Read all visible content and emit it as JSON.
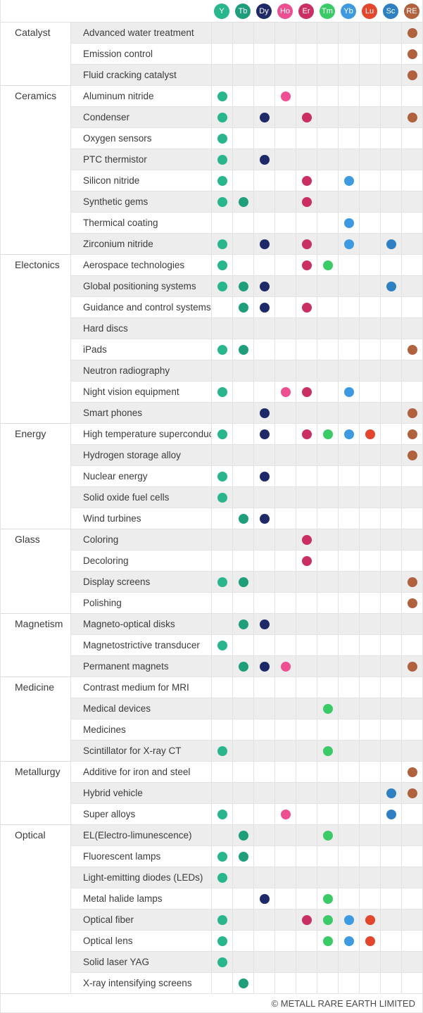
{
  "chart_data": {
    "type": "table",
    "description": "Dot-matrix table of rare earth elements vs. their applications by category",
    "columns": [
      "Y",
      "Tb",
      "Dy",
      "Ho",
      "Er",
      "Tm",
      "Yb",
      "Lu",
      "Sc",
      "RE"
    ],
    "column_colors": {
      "Y": "#29b68c",
      "Tb": "#1f9e7b",
      "Dy": "#1e2a68",
      "Ho": "#ee4f92",
      "Er": "#c92f62",
      "Tm": "#3bcb66",
      "Yb": "#3e9ae0",
      "Lu": "#e2472e",
      "Sc": "#2e80c2",
      "RE": "#b0613e"
    },
    "sections": [
      {
        "name": "Catalyst",
        "rows": [
          {
            "label": "Advanced water treatment",
            "dots": [
              "RE"
            ]
          },
          {
            "label": "Emission control",
            "dots": [
              "RE"
            ]
          },
          {
            "label": "Fluid cracking catalyst",
            "dots": [
              "RE"
            ]
          }
        ]
      },
      {
        "name": "Ceramics",
        "rows": [
          {
            "label": "Aluminum nitride",
            "dots": [
              "Y",
              "Ho"
            ]
          },
          {
            "label": "Condenser",
            "dots": [
              "Y",
              "Dy",
              "Er",
              "RE"
            ]
          },
          {
            "label": "Oxygen sensors",
            "dots": [
              "Y"
            ]
          },
          {
            "label": "PTC thermistor",
            "dots": [
              "Y",
              "Dy"
            ]
          },
          {
            "label": "Silicon nitride",
            "dots": [
              "Y",
              "Er",
              "Yb"
            ]
          },
          {
            "label": "Synthetic gems",
            "dots": [
              "Y",
              "Tb",
              "Er"
            ]
          },
          {
            "label": "Thermical coating",
            "dots": [
              "Yb"
            ]
          },
          {
            "label": "Zirconium nitride",
            "dots": [
              "Y",
              "Dy",
              "Er",
              "Yb",
              "Sc"
            ]
          }
        ]
      },
      {
        "name": "Electonics",
        "rows": [
          {
            "label": "Aerospace technologies",
            "dots": [
              "Y",
              "Er",
              "Tm"
            ]
          },
          {
            "label": "Global positioning systems",
            "dots": [
              "Y",
              "Tb",
              "Dy",
              "Sc"
            ]
          },
          {
            "label": "Guidance and control systems",
            "dots": [
              "Tb",
              "Dy",
              "Er"
            ]
          },
          {
            "label": "Hard discs",
            "dots": []
          },
          {
            "label": "iPads",
            "dots": [
              "Y",
              "Tb",
              "RE"
            ]
          },
          {
            "label": "Neutron radiography",
            "dots": []
          },
          {
            "label": "Night vision equipment",
            "dots": [
              "Y",
              "Ho",
              "Er",
              "Yb"
            ]
          },
          {
            "label": "Smart phones",
            "dots": [
              "Dy",
              "RE"
            ]
          }
        ]
      },
      {
        "name": "Energy",
        "rows": [
          {
            "label": "High temperature superconductors",
            "dots": [
              "Y",
              "Dy",
              "Er",
              "Tm",
              "Yb",
              "Lu",
              "RE"
            ]
          },
          {
            "label": "Hydrogen storage alloy",
            "dots": [
              "RE"
            ]
          },
          {
            "label": "Nuclear energy",
            "dots": [
              "Y",
              "Dy"
            ]
          },
          {
            "label": "Solid oxide fuel cells",
            "dots": [
              "Y"
            ]
          },
          {
            "label": "Wind turbines",
            "dots": [
              "Tb",
              "Dy"
            ]
          }
        ]
      },
      {
        "name": "Glass",
        "rows": [
          {
            "label": "Coloring",
            "dots": [
              "Er"
            ]
          },
          {
            "label": "Decoloring",
            "dots": [
              "Er"
            ]
          },
          {
            "label": "Display screens",
            "dots": [
              "Y",
              "Tb",
              "RE"
            ]
          },
          {
            "label": "Polishing",
            "dots": [
              "RE"
            ]
          }
        ]
      },
      {
        "name": "Magnetism",
        "rows": [
          {
            "label": "Magneto-optical disks",
            "dots": [
              "Tb",
              "Dy"
            ]
          },
          {
            "label": "Magnetostrictive transducer",
            "dots": [
              "Y"
            ]
          },
          {
            "label": "Permanent magnets",
            "dots": [
              "Tb",
              "Dy",
              "Ho",
              "RE"
            ]
          }
        ]
      },
      {
        "name": "Medicine",
        "rows": [
          {
            "label": "Contrast medium for MRI",
            "dots": []
          },
          {
            "label": "Medical devices",
            "dots": [
              "Tm"
            ]
          },
          {
            "label": "Medicines",
            "dots": []
          },
          {
            "label": "Scintillator for X-ray CT",
            "dots": [
              "Y",
              "Tm"
            ]
          }
        ]
      },
      {
        "name": "Metallurgy",
        "rows": [
          {
            "label": "Additive for iron and steel",
            "dots": [
              "RE"
            ]
          },
          {
            "label": "Hybrid vehicle",
            "dots": [
              "Sc",
              "RE"
            ]
          },
          {
            "label": "Super alloys",
            "dots": [
              "Y",
              "Ho",
              "Sc"
            ]
          }
        ]
      },
      {
        "name": "Optical",
        "rows": [
          {
            "label": "EL(Electro-limunescence)",
            "dots": [
              "Tb",
              "Tm"
            ]
          },
          {
            "label": "Fluorescent lamps",
            "dots": [
              "Y",
              "Tb"
            ]
          },
          {
            "label": "Light-emitting diodes (LEDs)",
            "dots": [
              "Y"
            ]
          },
          {
            "label": "Metal halide lamps",
            "dots": [
              "Dy",
              "Tm"
            ]
          },
          {
            "label": "Optical fiber",
            "dots": [
              "Y",
              "Er",
              "Tm",
              "Yb",
              "Lu"
            ]
          },
          {
            "label": "Optical lens",
            "dots": [
              "Y",
              "Tm",
              "Yb",
              "Lu"
            ]
          },
          {
            "label": "Solid laser YAG",
            "dots": [
              "Y"
            ]
          },
          {
            "label": "X-ray intensifying screens",
            "dots": [
              "Tb"
            ]
          }
        ]
      }
    ]
  },
  "footer": {
    "copyright": "© METALL RARE EARTH LIMITED"
  },
  "colors": {
    "stripe": "#ededed",
    "grid_line": "#e2e2e2",
    "section_line": "#dcdcdc"
  }
}
